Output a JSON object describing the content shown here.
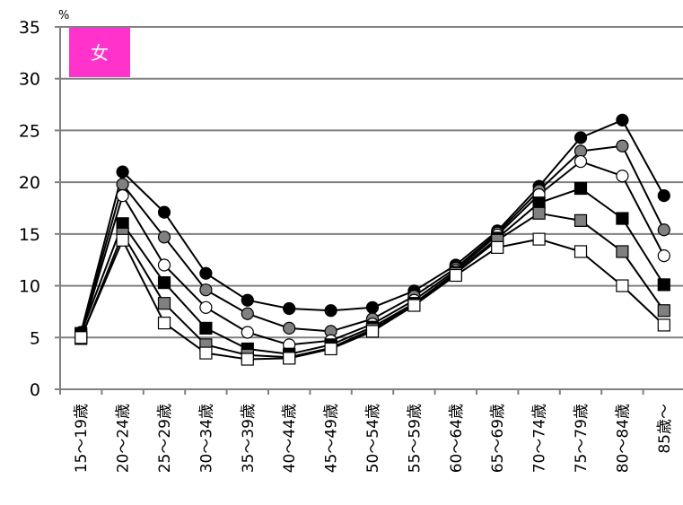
{
  "chart_data": {
    "type": "line",
    "unit_label": "%",
    "badge": {
      "label": "女",
      "color": "#ff33cc"
    },
    "categories": [
      "15〜19歳",
      "20〜24歳",
      "25〜29歳",
      "30〜34歳",
      "35〜39歳",
      "40〜44歳",
      "45〜49歳",
      "50〜54歳",
      "55〜59歳",
      "60〜64歳",
      "65〜69歳",
      "70〜74歳",
      "75〜79歳",
      "80〜84歳",
      "85歳〜"
    ],
    "ylim": [
      0,
      35
    ],
    "yticks": [
      0,
      5,
      10,
      15,
      20,
      25,
      30,
      35
    ],
    "grid": true,
    "series": [
      {
        "marker": "circle",
        "fill": "#000000",
        "values": [
          5.5,
          21.0,
          17.1,
          11.2,
          8.6,
          7.8,
          7.6,
          7.9,
          9.5,
          12.0,
          15.3,
          19.6,
          24.3,
          26.0,
          18.7
        ]
      },
      {
        "marker": "circle",
        "fill": "#808080",
        "values": [
          5.4,
          19.8,
          14.7,
          9.6,
          7.3,
          5.9,
          5.6,
          6.8,
          9.0,
          11.7,
          15.1,
          19.2,
          23.0,
          23.5,
          15.4
        ]
      },
      {
        "marker": "circle",
        "fill": "#ffffff",
        "values": [
          5.2,
          18.7,
          12.0,
          7.9,
          5.5,
          4.3,
          4.7,
          6.3,
          8.6,
          11.5,
          14.9,
          18.8,
          22.0,
          20.6,
          12.9
        ]
      },
      {
        "marker": "square",
        "fill": "#000000",
        "values": [
          5.4,
          16.0,
          10.3,
          5.9,
          3.9,
          3.4,
          4.3,
          6.0,
          8.3,
          11.3,
          14.6,
          18.0,
          19.4,
          16.5,
          10.1
        ]
      },
      {
        "marker": "square",
        "fill": "#808080",
        "values": [
          4.9,
          15.0,
          8.3,
          4.3,
          3.3,
          3.1,
          4.0,
          5.8,
          8.2,
          11.2,
          14.4,
          17.0,
          16.3,
          13.3,
          7.6
        ]
      },
      {
        "marker": "square",
        "fill": "#ffffff",
        "values": [
          5.0,
          14.4,
          6.4,
          3.5,
          2.9,
          3.0,
          3.9,
          5.6,
          8.1,
          11.0,
          13.7,
          14.5,
          13.3,
          10.0,
          6.2
        ]
      }
    ]
  }
}
